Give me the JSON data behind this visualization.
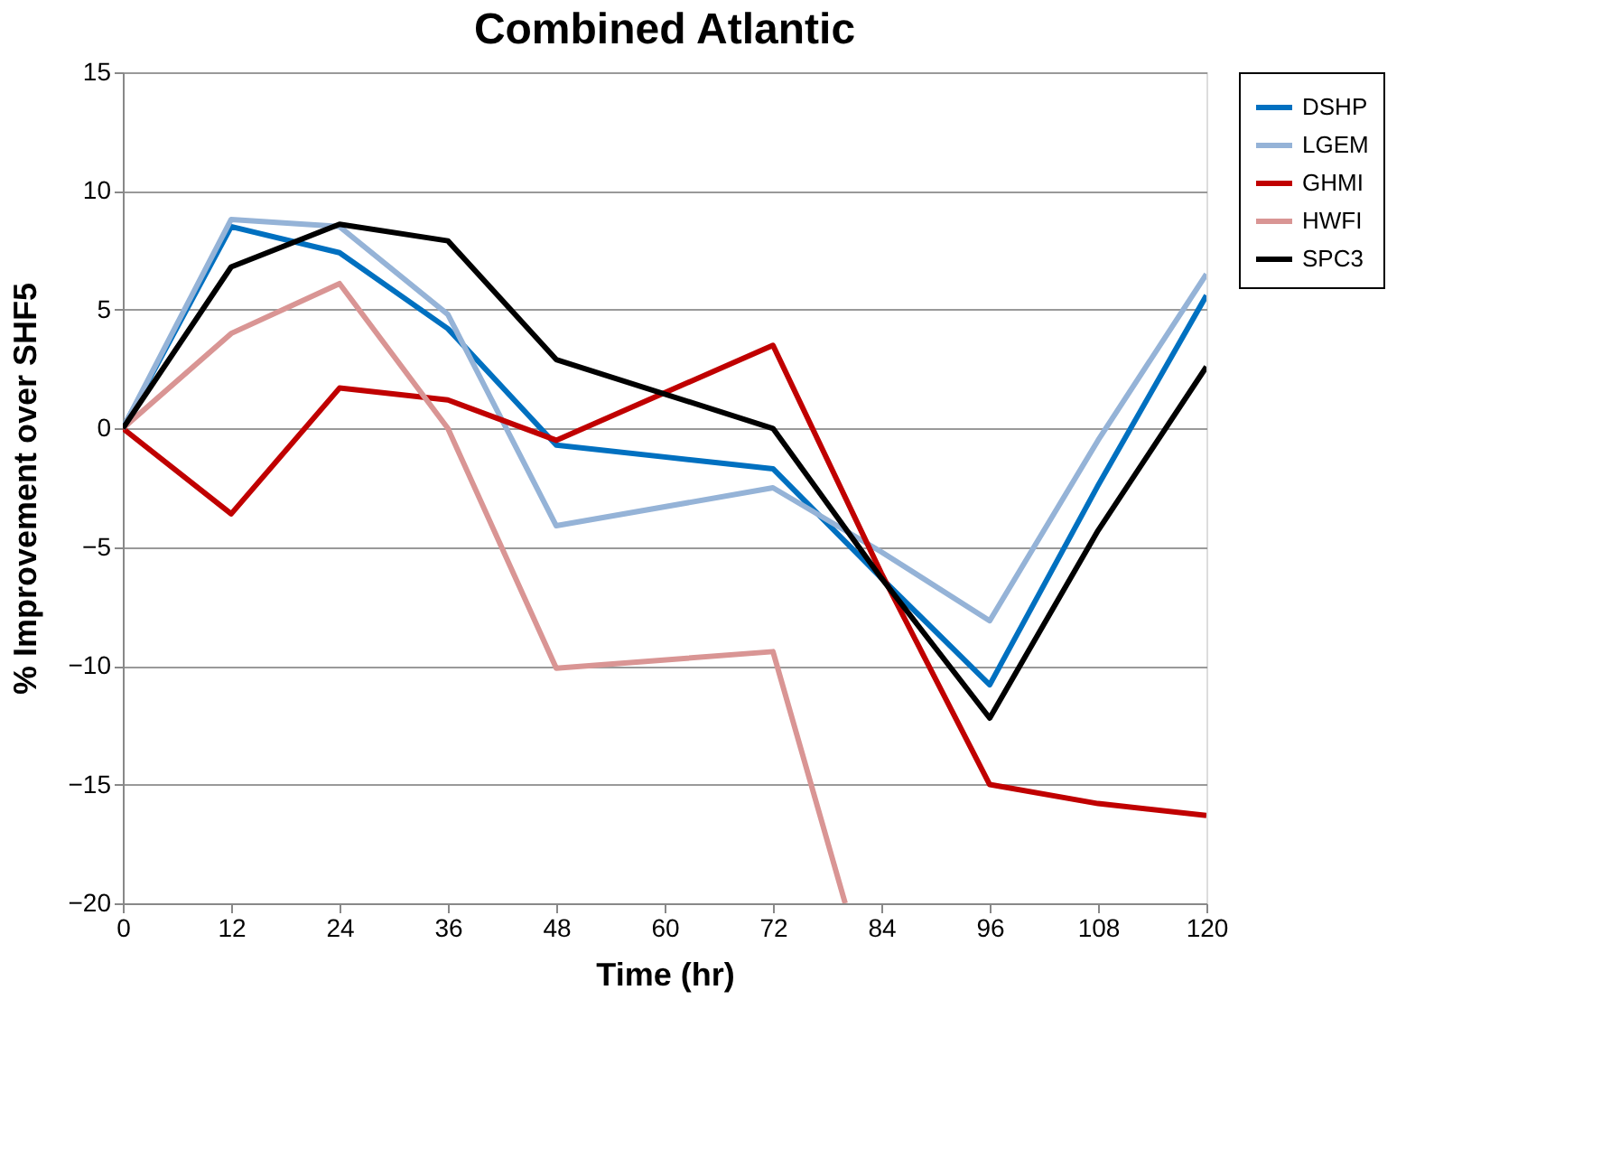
{
  "chart_data": {
    "type": "line",
    "title": "Combined Atlantic",
    "xlabel": "Time (hr)",
    "ylabel": "% Improvement over SHF5",
    "x": [
      0,
      12,
      24,
      36,
      48,
      72,
      84,
      96,
      108,
      120
    ],
    "series": [
      {
        "name": "DSHP",
        "color": "#0070c0",
        "values": [
          0,
          8.5,
          7.4,
          4.2,
          -0.7,
          -1.7,
          -6.3,
          -10.8,
          -2.4,
          5.6
        ]
      },
      {
        "name": "LGEM",
        "color": "#95b3d7",
        "values": [
          0,
          8.8,
          8.5,
          4.8,
          -4.1,
          -2.5,
          -5.2,
          -8.1,
          -0.5,
          6.5
        ]
      },
      {
        "name": "GHMI",
        "color": "#c00000",
        "values": [
          0,
          -3.6,
          1.7,
          1.2,
          -0.5,
          3.5,
          -6.1,
          -15,
          -15.8,
          -16.3
        ]
      },
      {
        "name": "HWFI",
        "color": "#d99594",
        "x": [
          0,
          12,
          24,
          36,
          48,
          72,
          80
        ],
        "values": [
          0,
          4,
          6.1,
          0,
          -10.1,
          -9.4,
          -20
        ]
      },
      {
        "name": "SPC3",
        "color": "#000000",
        "values": [
          0,
          6.8,
          8.6,
          7.9,
          2.9,
          0,
          -6.3,
          -12.2,
          -4.3,
          2.6
        ]
      }
    ],
    "xlim": [
      0,
      120
    ],
    "xticks": [
      0,
      12,
      24,
      36,
      48,
      60,
      72,
      84,
      96,
      108,
      120
    ],
    "ylim": [
      -20,
      15
    ],
    "yticks": [
      -20,
      -15,
      -10,
      -5,
      0,
      5,
      10,
      15
    ],
    "grid": "y",
    "legend": "right",
    "marker": "none",
    "line_style": "solid"
  }
}
